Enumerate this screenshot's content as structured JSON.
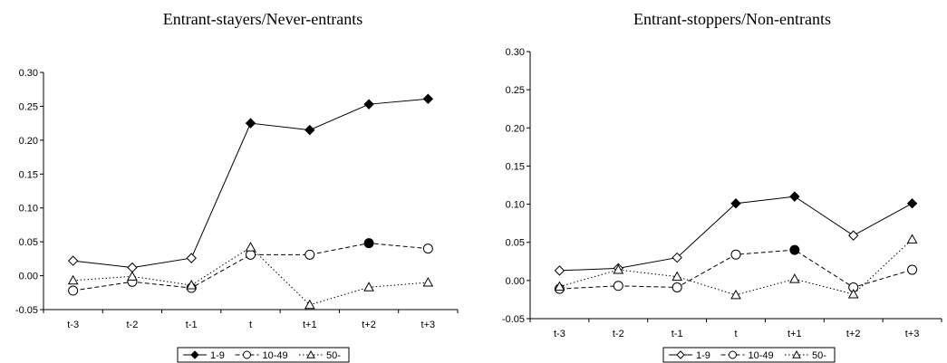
{
  "chart_data": [
    {
      "type": "line",
      "title": "Entrant-stayers/Never-entrants",
      "xlabel": "",
      "ylabel": "",
      "categories": [
        "t-3",
        "t-2",
        "t-1",
        "t",
        "t+1",
        "t+2",
        "t+3"
      ],
      "ylim": [
        -0.05,
        0.3
      ],
      "yticks": [
        "0.30",
        "0.25",
        "0.20",
        "0.15",
        "0.10",
        "0.05",
        "0.00",
        "-0.05"
      ],
      "series": [
        {
          "name": "1-9",
          "values": [
            0.022,
            0.012,
            0.026,
            0.225,
            0.215,
            0.253,
            0.261
          ],
          "marker": "diamond",
          "line": "solid",
          "filled": [
            false,
            false,
            false,
            true,
            true,
            true,
            true
          ]
        },
        {
          "name": "10-49",
          "values": [
            -0.022,
            -0.009,
            -0.018,
            0.031,
            0.031,
            0.048,
            0.04
          ],
          "marker": "circle",
          "line": "dashed",
          "filled": [
            false,
            false,
            false,
            false,
            false,
            true,
            false
          ]
        },
        {
          "name": "50-",
          "values": [
            -0.007,
            -0.001,
            -0.014,
            0.042,
            -0.043,
            -0.017,
            -0.01
          ],
          "marker": "triangle",
          "line": "dotted",
          "filled": [
            false,
            false,
            false,
            false,
            false,
            false,
            false
          ]
        }
      ],
      "legend": {
        "placement": "bottom",
        "entries": [
          "1-9",
          "10-49",
          "50-"
        ],
        "filled_markers": true
      },
      "grid": false
    },
    {
      "type": "line",
      "title": "Entrant-stoppers/Non-entrants",
      "xlabel": "",
      "ylabel": "",
      "categories": [
        "t-3",
        "t-2",
        "t-1",
        "t",
        "t+1",
        "t+2",
        "t+3"
      ],
      "ylim": [
        -0.05,
        0.3
      ],
      "yticks": [
        "0.30",
        "0.25",
        "0.20",
        "0.15",
        "0.10",
        "0.05",
        "0.00",
        "-0.05"
      ],
      "series": [
        {
          "name": "1-9",
          "values": [
            0.013,
            0.016,
            0.03,
            0.101,
            0.11,
            0.059,
            0.101
          ],
          "marker": "diamond",
          "line": "solid",
          "filled": [
            false,
            false,
            false,
            true,
            true,
            false,
            true
          ]
        },
        {
          "name": "10-49",
          "values": [
            -0.011,
            -0.007,
            -0.009,
            0.034,
            0.04,
            -0.009,
            0.014
          ],
          "marker": "circle",
          "line": "dashed",
          "filled": [
            false,
            false,
            false,
            false,
            true,
            false,
            false
          ]
        },
        {
          "name": "50-",
          "values": [
            -0.008,
            0.014,
            0.005,
            -0.019,
            0.002,
            -0.018,
            0.054
          ],
          "marker": "triangle",
          "line": "dotted",
          "filled": [
            false,
            false,
            false,
            false,
            false,
            false,
            false
          ]
        }
      ],
      "legend": {
        "placement": "bottom",
        "entries": [
          "1-9",
          "10-49",
          "50-"
        ],
        "filled_markers": false
      },
      "grid": false
    }
  ]
}
